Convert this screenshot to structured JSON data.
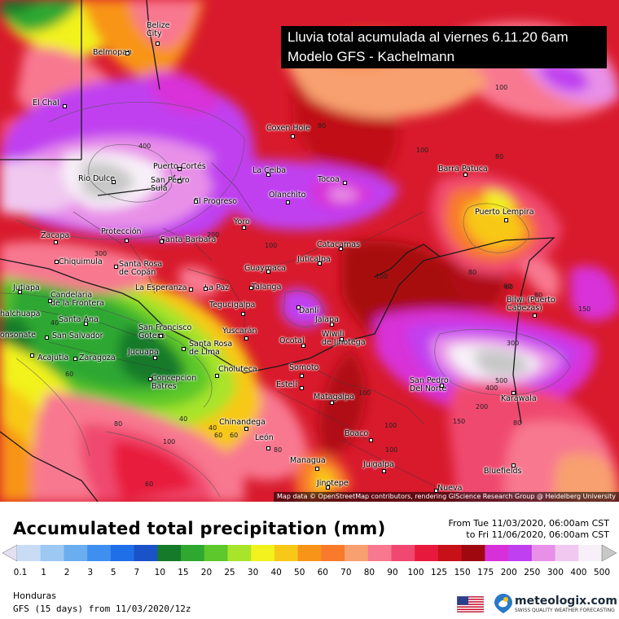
{
  "map": {
    "title_line1": "Lluvia total acumulada al viernes 6.11.20 6am",
    "title_line2": "Modelo GFS - Kachelmann",
    "attribution": "Map data © OpenStreetMap contributors, rendering GIScience Research Group @ Heidelberg University",
    "cities": [
      {
        "name": "Belize\nCity",
        "id": "belize-city"
      },
      {
        "name": "Belmopan",
        "id": "belmopan"
      },
      {
        "name": "El Chal",
        "id": "el-chal"
      },
      {
        "name": "Coxen Hole",
        "id": "coxen-hole"
      },
      {
        "name": "Puerto Cortés",
        "id": "puerto-cortes"
      },
      {
        "name": "San Pedro\nSula",
        "id": "san-pedro-sula"
      },
      {
        "name": "El Progreso",
        "id": "el-progreso"
      },
      {
        "name": "La Ceiba",
        "id": "la-ceiba"
      },
      {
        "name": "Tocoa",
        "id": "tocoa"
      },
      {
        "name": "Olanchito",
        "id": "olanchito"
      },
      {
        "name": "Rio Dulce",
        "id": "rio-dulce"
      },
      {
        "name": "Barra Patuca",
        "id": "barra-patuca"
      },
      {
        "name": "Puerto Lempira",
        "id": "puerto-lempira"
      },
      {
        "name": "Yoro",
        "id": "yoro"
      },
      {
        "name": "Zacapa",
        "id": "zacapa"
      },
      {
        "name": "Protección",
        "id": "proteccion"
      },
      {
        "name": "Santa Barbara",
        "id": "santa-barbara"
      },
      {
        "name": "Catacamas",
        "id": "catacamas"
      },
      {
        "name": "Juticalpa",
        "id": "juticalpa"
      },
      {
        "name": "Chiquimula",
        "id": "chiquimula"
      },
      {
        "name": "Santa Rosa\nde Copán",
        "id": "santa-rosa-de-copan"
      },
      {
        "name": "Guaymaca",
        "id": "guaymaca"
      },
      {
        "name": "La Esperanza",
        "id": "la-esperanza"
      },
      {
        "name": "La Paz",
        "id": "la-paz"
      },
      {
        "name": "Talanga",
        "id": "talanga"
      },
      {
        "name": "Jutiapa",
        "id": "jutiapa"
      },
      {
        "name": "Candelaria\nde la Frontera",
        "id": "candelaria"
      },
      {
        "name": "Tegucigalpa",
        "id": "tegucigalpa"
      },
      {
        "name": "Danlí",
        "id": "danli"
      },
      {
        "name": "Jalapa",
        "id": "jalapa"
      },
      {
        "name": "Bilwi (Puerto\nCabezas)",
        "id": "bilwi"
      },
      {
        "name": "halchuapa",
        "id": "chalchuapa"
      },
      {
        "name": "Santa Ana",
        "id": "santa-ana"
      },
      {
        "name": "San Salvador",
        "id": "san-salvador"
      },
      {
        "name": "onsonate",
        "id": "sonsonate"
      },
      {
        "name": "San Francisco\nGotera",
        "id": "san-francisco-gotera"
      },
      {
        "name": "Yuscarán",
        "id": "yuscaran"
      },
      {
        "name": "Wiwili\nde Jinotega",
        "id": "wiwili"
      },
      {
        "name": "Ocotal",
        "id": "ocotal"
      },
      {
        "name": "Acajutla",
        "id": "acajutla"
      },
      {
        "name": "Zaragoza",
        "id": "zaragoza"
      },
      {
        "name": "Jucuapa",
        "id": "jucuapa"
      },
      {
        "name": "Santa Rosa\nde Lima",
        "id": "santa-rosa-de-lima"
      },
      {
        "name": "Somoto",
        "id": "somoto"
      },
      {
        "name": "Concepcion\nBatres",
        "id": "concepcion-batres"
      },
      {
        "name": "Choluteca",
        "id": "choluteca"
      },
      {
        "name": "Estelí",
        "id": "esteli"
      },
      {
        "name": "San Pedro\nDel Norte",
        "id": "san-pedro-del-norte"
      },
      {
        "name": "Matagalpa",
        "id": "matagalpa"
      },
      {
        "name": "Karawala",
        "id": "karawala"
      },
      {
        "name": "Chinandega",
        "id": "chinandega"
      },
      {
        "name": "León",
        "id": "leon"
      },
      {
        "name": "Boaco",
        "id": "boaco"
      },
      {
        "name": "Managua",
        "id": "managua"
      },
      {
        "name": "Juigalpa",
        "id": "juigalpa"
      },
      {
        "name": "Bluefields",
        "id": "bluefields"
      },
      {
        "name": "Jinotepe",
        "id": "jinotepe"
      },
      {
        "name": "Nueva",
        "id": "nueva"
      }
    ],
    "contour_labels": [
      "400",
      "300",
      "200",
      "100",
      "80",
      "100",
      "80",
      "60",
      "80",
      "100",
      "100",
      "80",
      "60",
      "300",
      "500",
      "400",
      "200",
      "150",
      "40",
      "60",
      "80",
      "100",
      "80",
      "60",
      "40",
      "60",
      "80",
      "100",
      "150",
      "100",
      "100",
      "40",
      "60"
    ]
  },
  "legend": {
    "title": "Accumulated total precipitation (mm)",
    "range_from": "From Tue 11/03/2020, 06:00am CST",
    "range_to": "to Fri 11/06/2020, 06:00am CST",
    "ticks": [
      "0.1",
      "1",
      "2",
      "3",
      "5",
      "7",
      "10",
      "15",
      "20",
      "25",
      "30",
      "40",
      "50",
      "60",
      "70",
      "80",
      "90",
      "100",
      "125",
      "150",
      "175",
      "200",
      "250",
      "300",
      "400",
      "500"
    ],
    "colors": [
      "#e4e0f2",
      "#c8ddf5",
      "#9cc8f2",
      "#6aaef0",
      "#3f8ff0",
      "#1f6fe8",
      "#1a52c8",
      "#157a2a",
      "#2fa830",
      "#5cc82c",
      "#a8e42a",
      "#f2f21e",
      "#f8c818",
      "#f89418",
      "#f87a2a",
      "#f8a070",
      "#f87890",
      "#f04870",
      "#e81a3c",
      "#c81018",
      "#a00810",
      "#d830d8",
      "#c040f0",
      "#e890e8",
      "#f0c8f0",
      "#f8f0f8",
      "#c8c8c8"
    ]
  },
  "footer": {
    "region": "Honduras",
    "model": "GFS (15 days) from 11/03/2020/12z",
    "brand": "meteologix.com",
    "tagline": "SWISS QUALITY WEATHER FORECASTING"
  }
}
